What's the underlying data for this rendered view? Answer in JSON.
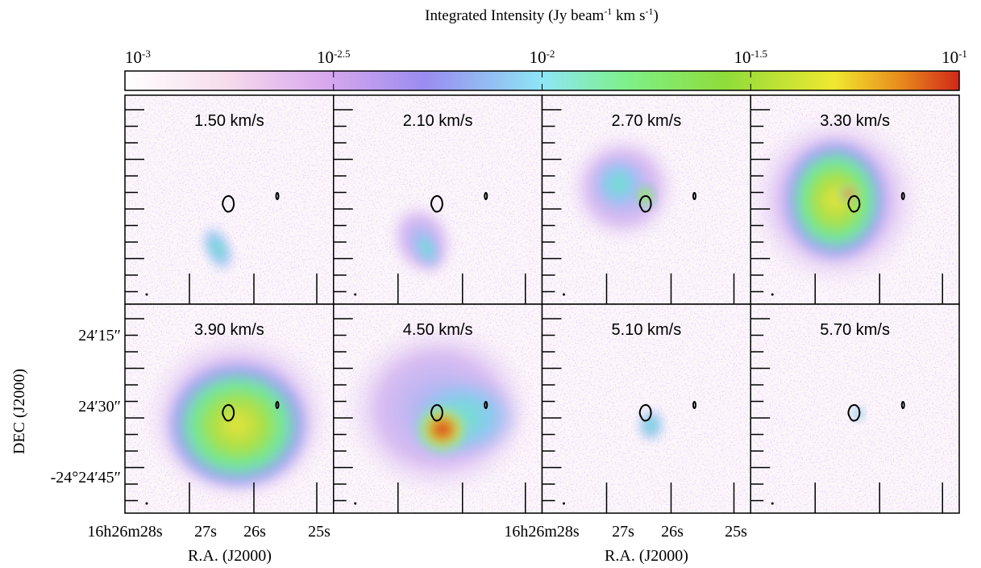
{
  "colorbar": {
    "title": [
      "Integrated Intensity (Jy beam",
      "-1",
      " km s",
      "-1",
      ")"
    ],
    "ticks": [
      {
        "base": "10",
        "exponent": "-3"
      },
      {
        "base": "10",
        "exponent": "-2.5"
      },
      {
        "base": "10",
        "exponent": "-2"
      },
      {
        "base": "10",
        "exponent": "-1.5"
      },
      {
        "base": "10",
        "exponent": "-1"
      }
    ]
  },
  "panels": [
    "1.50 km/s",
    "2.10 km/s",
    "2.70 km/s",
    "3.30 km/s",
    "3.90 km/s",
    "4.50 km/s",
    "5.10 km/s",
    "5.70 km/s"
  ],
  "y_axis": {
    "label": "DEC (J2000)",
    "ticks": [
      "24′15″",
      "24′30″",
      "-24°24′45″"
    ]
  },
  "x_axes": [
    {
      "label": "R.A. (J2000)",
      "ticks": [
        "16h26m28s",
        "27s",
        "26s",
        "25s"
      ]
    },
    {
      "label": "R.A. (J2000)",
      "ticks": [
        "16h26m28s",
        "27s",
        "26s",
        "25s"
      ]
    }
  ]
}
